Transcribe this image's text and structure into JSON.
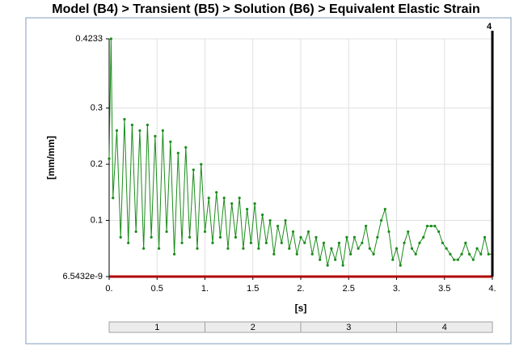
{
  "chart_data": {
    "type": "line",
    "title": "Model (B4) > Transient (B5) > Solution (B6) > Equivalent Elastic Strain",
    "x_label": "[s]",
    "y_label": "[mm/mm]",
    "x": [
      0,
      0.02,
      0.04,
      0.08,
      0.12,
      0.16,
      0.2,
      0.24,
      0.28,
      0.32,
      0.36,
      0.4,
      0.44,
      0.48,
      0.52,
      0.56,
      0.6,
      0.64,
      0.68,
      0.72,
      0.76,
      0.8,
      0.84,
      0.88,
      0.92,
      0.96,
      1.0,
      1.04,
      1.08,
      1.12,
      1.16,
      1.2,
      1.24,
      1.28,
      1.32,
      1.36,
      1.4,
      1.44,
      1.48,
      1.52,
      1.56,
      1.6,
      1.64,
      1.68,
      1.72,
      1.76,
      1.8,
      1.84,
      1.88,
      1.92,
      1.96,
      2.0,
      2.04,
      2.08,
      2.12,
      2.16,
      2.2,
      2.24,
      2.28,
      2.32,
      2.36,
      2.4,
      2.44,
      2.48,
      2.52,
      2.56,
      2.6,
      2.64,
      2.68,
      2.72,
      2.76,
      2.8,
      2.84,
      2.88,
      2.92,
      2.96,
      3.0,
      3.04,
      3.08,
      3.12,
      3.16,
      3.2,
      3.24,
      3.28,
      3.32,
      3.36,
      3.4,
      3.44,
      3.48,
      3.52,
      3.56,
      3.6,
      3.64,
      3.68,
      3.72,
      3.76,
      3.8,
      3.84,
      3.88,
      3.92,
      3.96,
      4.0
    ],
    "series": [
      {
        "color": "#1a8c1a",
        "values": [
          0.21,
          0.4233,
          0.14,
          0.26,
          0.07,
          0.28,
          0.06,
          0.27,
          0.08,
          0.26,
          0.05,
          0.27,
          0.07,
          0.25,
          0.05,
          0.26,
          0.08,
          0.24,
          0.04,
          0.22,
          0.06,
          0.23,
          0.07,
          0.19,
          0.05,
          0.2,
          0.08,
          0.14,
          0.06,
          0.15,
          0.07,
          0.14,
          0.05,
          0.13,
          0.07,
          0.14,
          0.05,
          0.12,
          0.06,
          0.13,
          0.05,
          0.11,
          0.06,
          0.1,
          0.04,
          0.09,
          0.06,
          0.1,
          0.05,
          0.08,
          0.04,
          0.07,
          0.06,
          0.08,
          0.04,
          0.07,
          0.03,
          0.06,
          0.02,
          0.05,
          0.03,
          0.06,
          0.02,
          0.07,
          0.04,
          0.07,
          0.05,
          0.06,
          0.09,
          0.05,
          0.04,
          0.07,
          0.1,
          0.12,
          0.08,
          0.03,
          0.05,
          0.02,
          0.06,
          0.08,
          0.05,
          0.04,
          0.06,
          0.07,
          0.09,
          0.09,
          0.09,
          0.08,
          0.06,
          0.05,
          0.04,
          0.03,
          0.03,
          0.04,
          0.06,
          0.04,
          0.03,
          0.05,
          0.04,
          0.07,
          0.04,
          0.04
        ]
      }
    ],
    "xlim": [
      0,
      4
    ],
    "ylim": [
      6.5432e-09,
      0.4233
    ],
    "xticks": [
      {
        "value": 0,
        "label": "0."
      },
      0.5,
      {
        "value": 1,
        "label": "1."
      },
      1.5,
      {
        "value": 2,
        "label": "2."
      },
      2.5,
      {
        "value": 3,
        "label": "3."
      },
      3.5,
      {
        "value": 4,
        "label": "4."
      }
    ],
    "yticks": [
      6.5432e-09,
      0.1,
      0.2,
      0.3,
      0.4233
    ],
    "grid": true,
    "cursor": 4,
    "steps": [
      "1",
      "2",
      "3",
      "4"
    ]
  }
}
